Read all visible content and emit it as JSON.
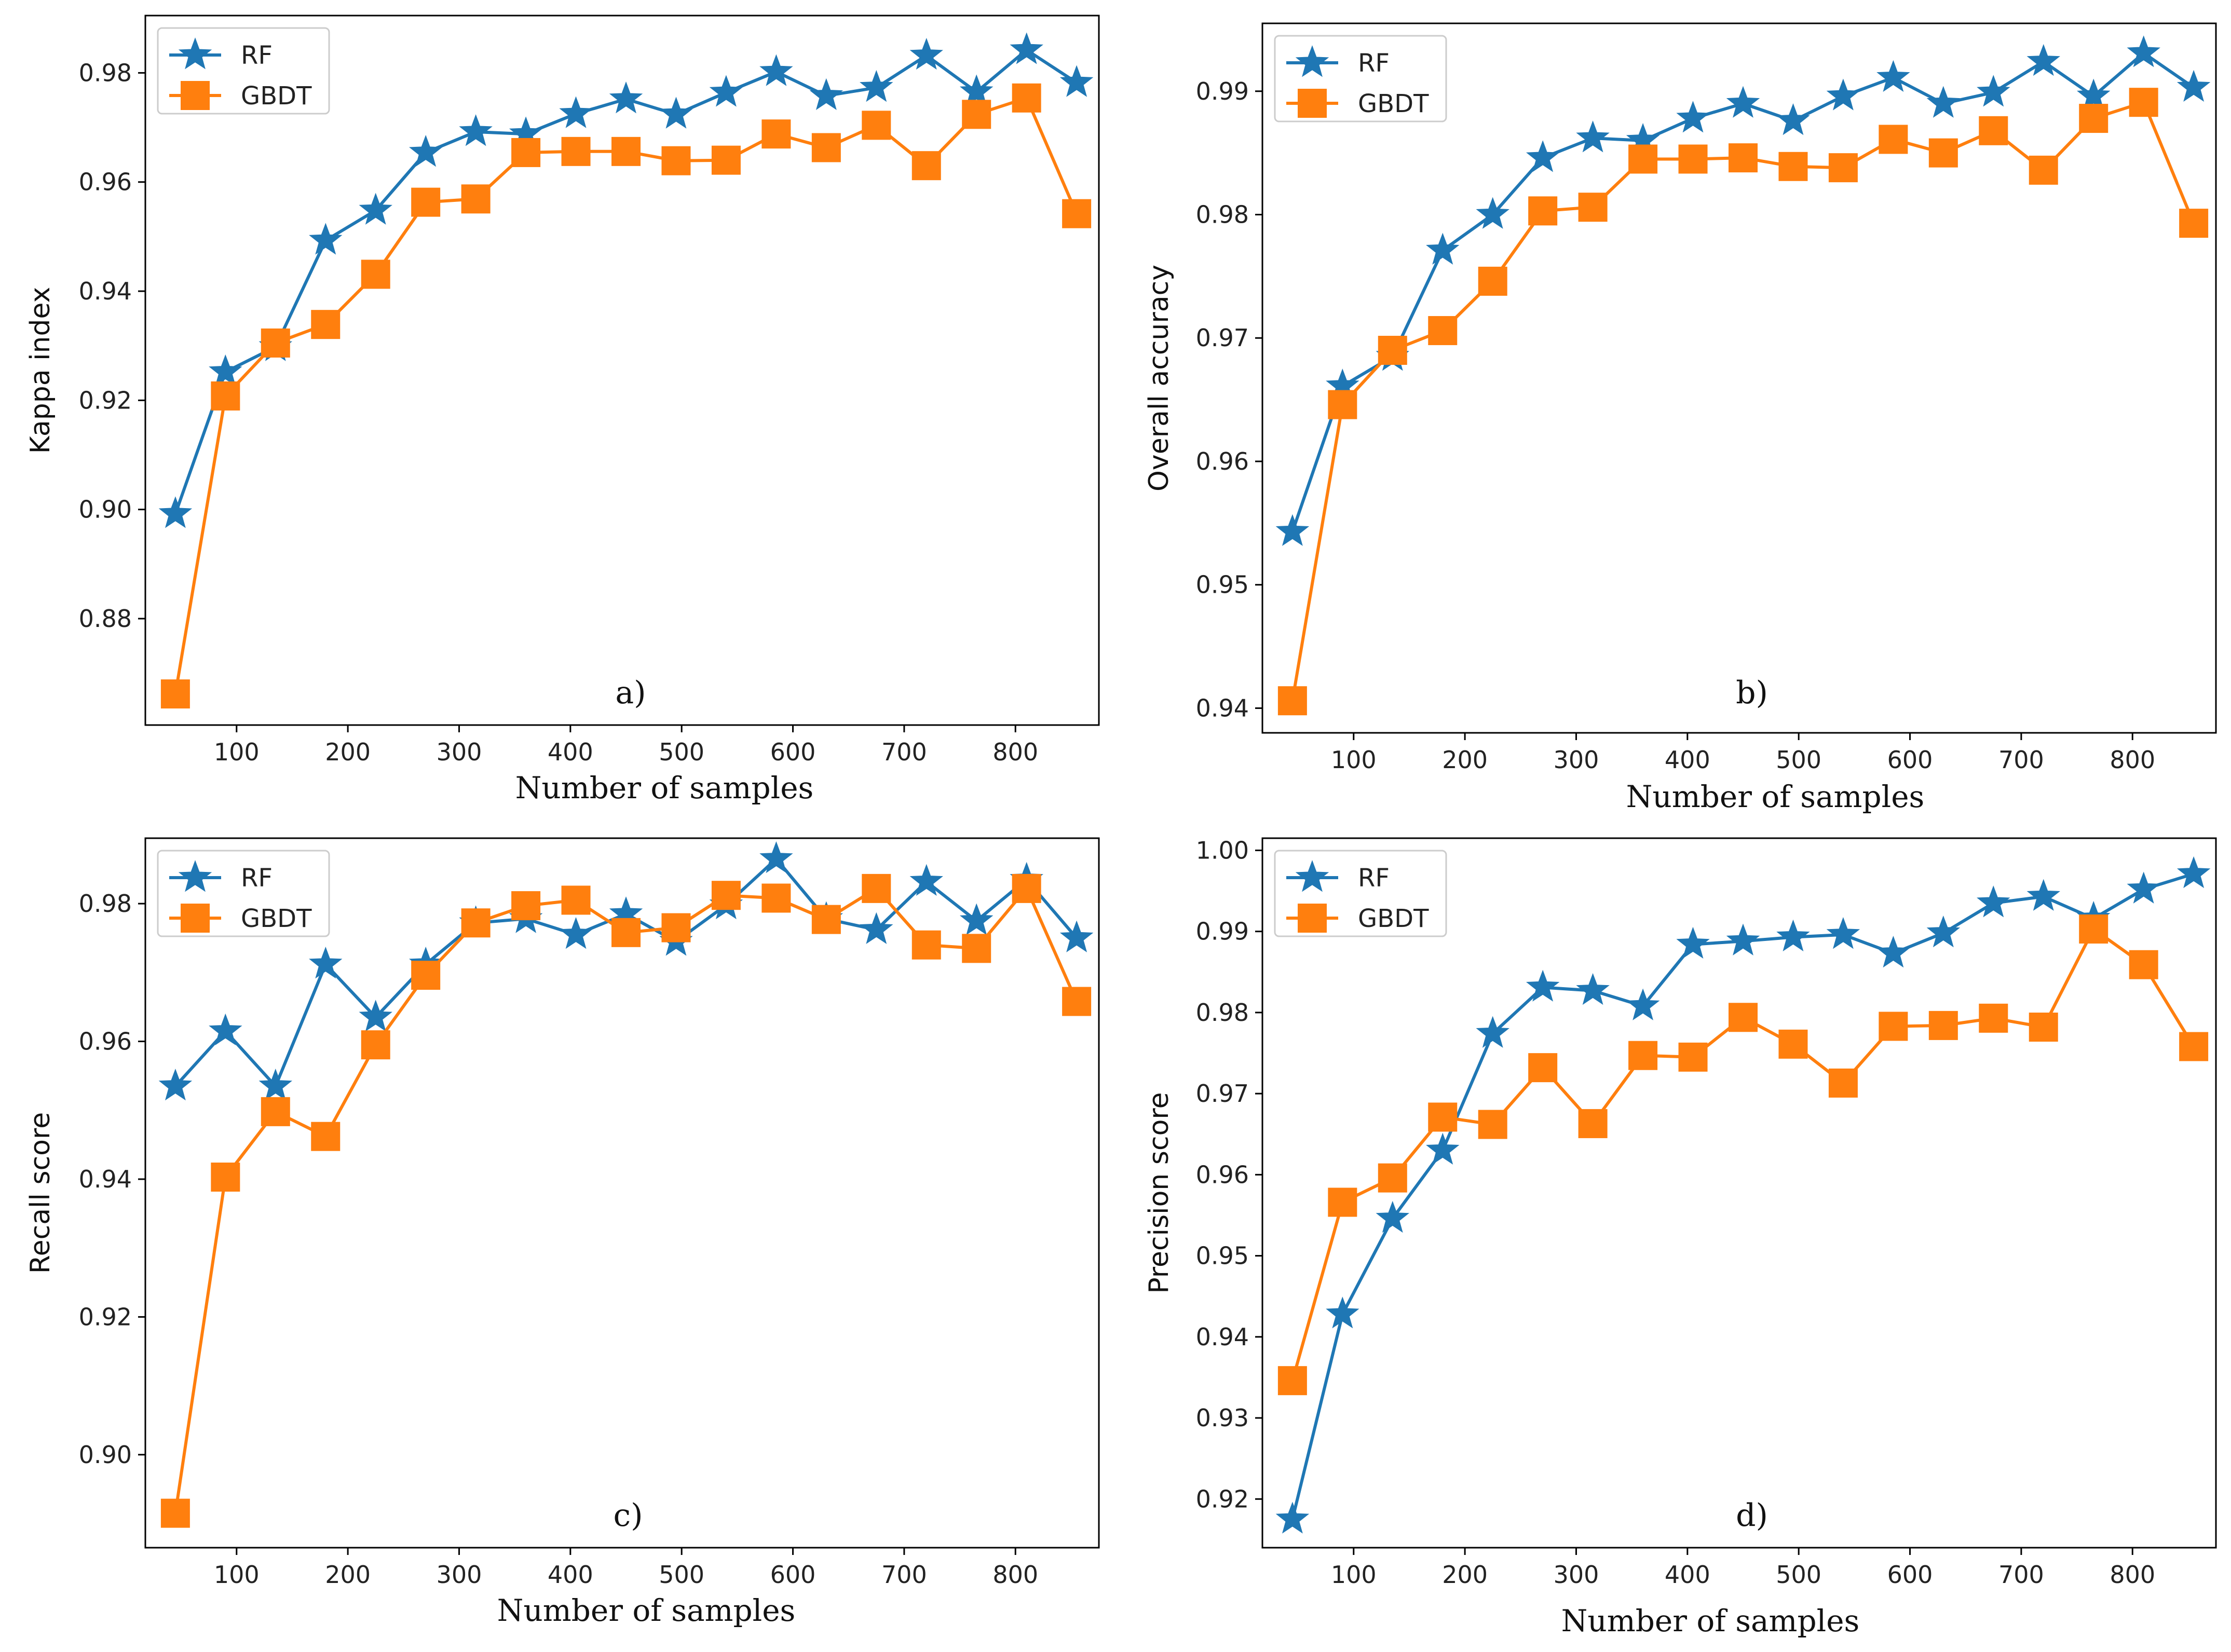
{
  "figure": {
    "xlabel_common": "Number of samples"
  },
  "colors": {
    "rf": "#1f77b4",
    "gbdt": "#ff7f0e",
    "axis": "#000000",
    "legend_border": "#cccccc"
  },
  "chart_data": [
    {
      "id": "a",
      "type": "line",
      "panel_label": "a)",
      "xlabel": "Number of samples",
      "ylabel": "Kappa index",
      "xlim": [
        18,
        875
      ],
      "ylim": [
        0.8605,
        0.9905
      ],
      "xticks": [
        100,
        200,
        300,
        400,
        500,
        600,
        700,
        800
      ],
      "xtick_labels": [
        "100",
        "200",
        "300",
        "400",
        "500",
        "600",
        "700",
        "800"
      ],
      "yticks": [
        0.88,
        0.9,
        0.92,
        0.94,
        0.96,
        0.98
      ],
      "ytick_labels": [
        "0.88",
        "0.90",
        "0.92",
        "0.94",
        "0.96",
        "0.98"
      ],
      "legend": "top-left",
      "x": [
        45,
        90,
        135,
        180,
        225,
        270,
        315,
        360,
        405,
        450,
        495,
        540,
        585,
        630,
        675,
        720,
        765,
        810,
        855
      ],
      "series": [
        {
          "name": "RF",
          "marker": "star",
          "values": [
            0.8992,
            0.9252,
            0.9298,
            0.9493,
            0.9548,
            0.9654,
            0.9692,
            0.9688,
            0.9725,
            0.9752,
            0.9724,
            0.9764,
            0.9802,
            0.9758,
            0.9773,
            0.9832,
            0.9765,
            0.9842,
            0.9782
          ]
        },
        {
          "name": "GBDT",
          "marker": "square",
          "values": [
            0.8662,
            0.9208,
            0.9305,
            0.9339,
            0.9431,
            0.9563,
            0.9569,
            0.9654,
            0.9656,
            0.9656,
            0.9639,
            0.964,
            0.9688,
            0.9663,
            0.9704,
            0.963,
            0.9724,
            0.9754,
            0.9542
          ]
        }
      ]
    },
    {
      "id": "b",
      "type": "line",
      "panel_label": "b)",
      "xlabel": "Number of samples",
      "ylabel": "Overall accuracy",
      "xlim": [
        18,
        875
      ],
      "ylim": [
        0.938,
        0.9955
      ],
      "xticks": [
        100,
        200,
        300,
        400,
        500,
        600,
        700,
        800
      ],
      "xtick_labels": [
        "100",
        "200",
        "300",
        "400",
        "500",
        "600",
        "700",
        "800"
      ],
      "yticks": [
        0.94,
        0.95,
        0.96,
        0.97,
        0.98,
        0.99
      ],
      "ytick_labels": [
        "0.94",
        "0.95",
        "0.96",
        "0.97",
        "0.98",
        "0.99"
      ],
      "legend": "top-left",
      "x": [
        45,
        90,
        135,
        180,
        225,
        270,
        315,
        360,
        405,
        450,
        495,
        540,
        585,
        630,
        675,
        720,
        765,
        810,
        855
      ],
      "series": [
        {
          "name": "RF",
          "marker": "star",
          "values": [
            0.9543,
            0.9661,
            0.9685,
            0.9771,
            0.98,
            0.9846,
            0.9862,
            0.986,
            0.9878,
            0.989,
            0.9876,
            0.9896,
            0.9911,
            0.989,
            0.9899,
            0.9924,
            0.9896,
            0.9931,
            0.9903
          ]
        },
        {
          "name": "GBDT",
          "marker": "square",
          "values": [
            0.9406,
            0.9646,
            0.969,
            0.9706,
            0.9746,
            0.9803,
            0.9806,
            0.9845,
            0.9845,
            0.9846,
            0.9839,
            0.9838,
            0.9861,
            0.985,
            0.9868,
            0.9836,
            0.9878,
            0.9891,
            0.9793
          ]
        }
      ]
    },
    {
      "id": "c",
      "type": "line",
      "panel_label": "c)",
      "xlabel": "Number of samples",
      "ylabel": "Recall score",
      "xlim": [
        18,
        875
      ],
      "ylim": [
        0.8865,
        0.9895
      ],
      "xticks": [
        100,
        200,
        300,
        400,
        500,
        600,
        700,
        800
      ],
      "xtick_labels": [
        "100",
        "200",
        "300",
        "400",
        "500",
        "600",
        "700",
        "800"
      ],
      "yticks": [
        0.9,
        0.92,
        0.94,
        0.96,
        0.98
      ],
      "ytick_labels": [
        "0.90",
        "0.92",
        "0.94",
        "0.96",
        "0.98"
      ],
      "legend": "top-left",
      "x": [
        45,
        90,
        135,
        180,
        225,
        270,
        315,
        360,
        405,
        450,
        495,
        540,
        585,
        630,
        675,
        720,
        765,
        810,
        855
      ],
      "series": [
        {
          "name": "RF",
          "marker": "star",
          "values": [
            0.9535,
            0.9615,
            0.9535,
            0.9712,
            0.9635,
            0.9712,
            0.9772,
            0.9778,
            0.9755,
            0.9785,
            0.9745,
            0.9798,
            0.9865,
            0.9778,
            0.9762,
            0.9832,
            0.9775,
            0.9835,
            0.975
          ]
        },
        {
          "name": "GBDT",
          "marker": "square",
          "values": [
            0.8915,
            0.9403,
            0.9498,
            0.9462,
            0.9595,
            0.9696,
            0.9772,
            0.9797,
            0.9805,
            0.9758,
            0.9765,
            0.9812,
            0.9808,
            0.9777,
            0.9822,
            0.974,
            0.9735,
            0.9822,
            0.9658
          ]
        }
      ]
    },
    {
      "id": "d",
      "type": "line",
      "panel_label": "d)",
      "xlabel": "Number of samples",
      "ylabel": "Precision score",
      "xlim": [
        18,
        875
      ],
      "ylim": [
        0.914,
        1.0015
      ],
      "xticks": [
        100,
        200,
        300,
        400,
        500,
        600,
        700,
        800
      ],
      "xtick_labels": [
        "100",
        "200",
        "300",
        "400",
        "500",
        "600",
        "700",
        "800"
      ],
      "yticks": [
        0.92,
        0.93,
        0.94,
        0.95,
        0.96,
        0.97,
        0.98,
        0.99,
        1.0
      ],
      "ytick_labels": [
        "0.92",
        "0.93",
        "0.94",
        "0.95",
        "0.96",
        "0.97",
        "0.98",
        "0.99",
        "1.00"
      ],
      "legend": "top-left",
      "x": [
        45,
        90,
        135,
        180,
        225,
        270,
        315,
        360,
        405,
        450,
        495,
        540,
        585,
        630,
        675,
        720,
        765,
        810,
        855
      ],
      "series": [
        {
          "name": "RF",
          "marker": "star",
          "values": [
            0.9175,
            0.9428,
            0.9546,
            0.963,
            0.9774,
            0.9831,
            0.9827,
            0.9808,
            0.9884,
            0.9888,
            0.9893,
            0.9896,
            0.9873,
            0.9898,
            0.9935,
            0.9943,
            0.9916,
            0.9952,
            0.9971
          ]
        },
        {
          "name": "GBDT",
          "marker": "square",
          "values": [
            0.9346,
            0.9566,
            0.9596,
            0.9671,
            0.9662,
            0.9732,
            0.9663,
            0.9747,
            0.9745,
            0.9794,
            0.9761,
            0.9713,
            0.9783,
            0.9784,
            0.9793,
            0.9782,
            0.9903,
            0.9859,
            0.9758
          ]
        }
      ]
    }
  ]
}
